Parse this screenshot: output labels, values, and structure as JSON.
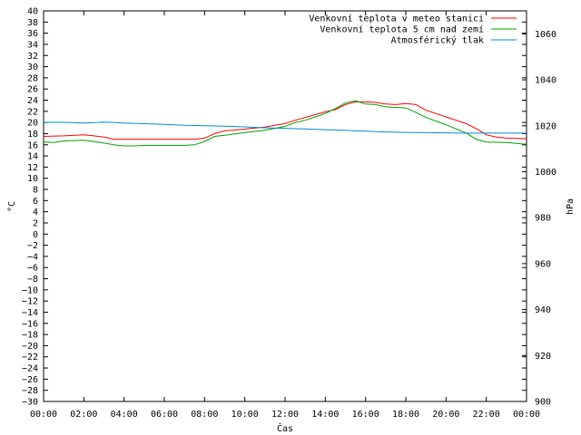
{
  "chart_data": {
    "type": "line",
    "xlabel": "Čas",
    "ylabel": "°C",
    "y2label": "hPa",
    "x_unit": "hours",
    "x_ticks": [
      0,
      2,
      4,
      6,
      8,
      10,
      12,
      14,
      16,
      18,
      20,
      22,
      24
    ],
    "x_tick_labels": [
      "00:00",
      "02:00",
      "04:00",
      "06:00",
      "08:00",
      "10:00",
      "12:00",
      "14:00",
      "16:00",
      "18:00",
      "20:00",
      "22:00",
      "00:00"
    ],
    "xlim": [
      0,
      24
    ],
    "ylim": [
      -30,
      40
    ],
    "y_ticks": [
      40,
      38,
      36,
      34,
      32,
      30,
      28,
      26,
      24,
      22,
      20,
      18,
      16,
      14,
      12,
      10,
      8,
      6,
      4,
      2,
      0,
      -2,
      -4,
      -6,
      -8,
      -10,
      -12,
      -14,
      -16,
      -18,
      -20,
      -22,
      -24,
      -26,
      -28,
      -30
    ],
    "y_tick_labels": [
      "40",
      "38",
      "36",
      "34",
      "32",
      "30",
      "28",
      "26",
      "24",
      "22",
      "20",
      "18",
      "16",
      "14",
      "12",
      "10",
      "8",
      "6",
      "4",
      "2",
      "0",
      "−2",
      "−4",
      "−6",
      "−8",
      "−10",
      "−12",
      "−14",
      "−16",
      "−18",
      "−20",
      "−22",
      "−24",
      "−26",
      "−28",
      "−30"
    ],
    "y2lim": [
      900,
      1070
    ],
    "y2_ticks": [
      1060,
      1040,
      1020,
      1000,
      980,
      960,
      940,
      920,
      900
    ],
    "y2_tick_labels": [
      "1060",
      "1040",
      "1020",
      "1000",
      "980",
      "960",
      "940",
      "920",
      "900"
    ],
    "grid": false,
    "legend_position": "top-right",
    "series": [
      {
        "name": "Venkovní teplota v meteo stanici",
        "color": "#ff0000",
        "axis": "left",
        "x": [
          0,
          1,
          2,
          2.5,
          3,
          3.5,
          4,
          5,
          6,
          7,
          7.5,
          8,
          8.5,
          9,
          10,
          11,
          12,
          12.5,
          13,
          13.5,
          14,
          14.5,
          15,
          15.5,
          16,
          16.5,
          17,
          17.5,
          18,
          18.5,
          19,
          20,
          21,
          21.5,
          22,
          22.5,
          23,
          24
        ],
        "y": [
          17.5,
          17.6,
          17.8,
          17.6,
          17.4,
          17.0,
          17.0,
          17.0,
          17.0,
          17.0,
          17.0,
          17.2,
          18.0,
          18.5,
          18.8,
          19.2,
          19.8,
          20.4,
          20.9,
          21.4,
          21.9,
          22.3,
          23.2,
          23.7,
          23.7,
          23.6,
          23.3,
          23.2,
          23.4,
          23.2,
          22.2,
          21.0,
          19.8,
          18.9,
          17.8,
          17.4,
          17.2,
          17.1
        ]
      },
      {
        "name": "Venkovní teplota 5 cm nad zemí",
        "color": "#00a000",
        "axis": "left",
        "x": [
          0,
          0.5,
          1,
          2,
          2.5,
          3,
          3.5,
          4,
          4.5,
          5,
          6,
          7,
          7.5,
          8,
          8.5,
          9,
          10,
          11,
          12,
          12.5,
          13,
          13.5,
          14,
          14.5,
          15,
          15.5,
          16,
          16.5,
          17,
          17.5,
          18,
          18.5,
          19,
          20,
          21,
          21.5,
          22,
          23,
          24
        ],
        "y": [
          16.5,
          16.4,
          16.7,
          16.8,
          16.6,
          16.3,
          16.0,
          15.8,
          15.8,
          15.9,
          15.9,
          15.9,
          16.0,
          16.6,
          17.5,
          17.7,
          18.2,
          18.6,
          19.3,
          20.0,
          20.4,
          21.0,
          21.6,
          22.5,
          23.5,
          23.9,
          23.3,
          23.2,
          22.8,
          22.7,
          22.6,
          21.8,
          20.9,
          19.6,
          18.1,
          17.0,
          16.5,
          16.4,
          16.1
        ]
      },
      {
        "name": "Atmosférický tlak",
        "color": "#008cd0",
        "axis": "right",
        "x": [
          0,
          1,
          2,
          3,
          4,
          5,
          6,
          7,
          8,
          9,
          10,
          11,
          12,
          13,
          14,
          15,
          16,
          17,
          18,
          19,
          20,
          21,
          22,
          23,
          24
        ],
        "y": [
          1021.5,
          1021.5,
          1021.2,
          1021.6,
          1021.2,
          1020.9,
          1020.6,
          1020.2,
          1020.0,
          1019.8,
          1019.5,
          1019.1,
          1018.9,
          1018.6,
          1018.3,
          1018.0,
          1017.6,
          1017.3,
          1017.1,
          1017.0,
          1016.9,
          1016.8,
          1016.8,
          1016.8,
          1016.8
        ]
      }
    ]
  }
}
